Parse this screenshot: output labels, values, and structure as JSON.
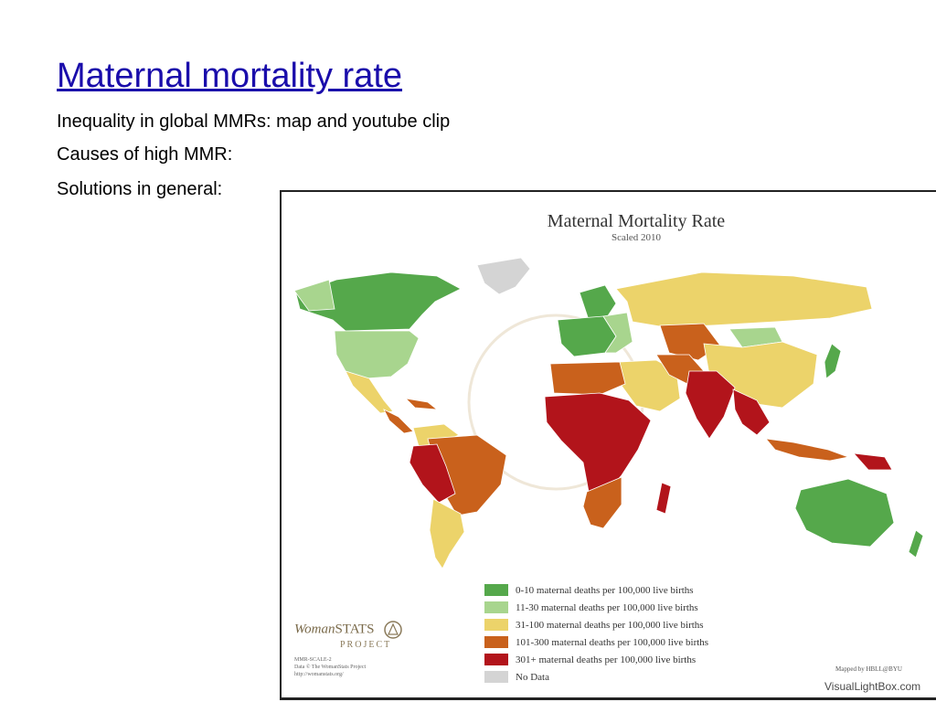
{
  "slide": {
    "title": "Maternal mortality rate",
    "bullets": [
      "Inequality in global MMRs: map and youtube clip",
      "Causes of high MMR:",
      "Solutions in general:"
    ]
  },
  "map": {
    "title": "Maternal Mortality Rate",
    "subtitle": "Scaled 2010",
    "colors": {
      "c0_10": "#55a84b",
      "c11_30": "#a8d58e",
      "c31_100": "#ecd36a",
      "c101_300": "#c9611c",
      "c301": "#b2141b",
      "nodata": "#d4d4d4"
    },
    "legend": [
      {
        "label": "0-10 maternal deaths per 100,000 live births",
        "color": "#55a84b"
      },
      {
        "label": "11-30 maternal deaths per 100,000 live births",
        "color": "#a8d58e"
      },
      {
        "label": "31-100 maternal deaths per 100,000 live births",
        "color": "#ecd36a"
      },
      {
        "label": "101-300 maternal deaths per 100,000 live births",
        "color": "#c9611c"
      },
      {
        "label": "301+ maternal deaths per 100,000 live births",
        "color": "#b2141b"
      },
      {
        "label": "No Data",
        "color": "#d4d4d4"
      }
    ],
    "logo": {
      "name_prefix": "Woman",
      "name_suffix": "STATS",
      "project": "PROJECT"
    },
    "credits": [
      "MMR-SCALE-2",
      "Data © The WomanStats Project",
      "http://womanstats.org/"
    ],
    "mapped_by": "Mapped by HBLL@BYU",
    "watermark": "VisualLightBox.com"
  }
}
